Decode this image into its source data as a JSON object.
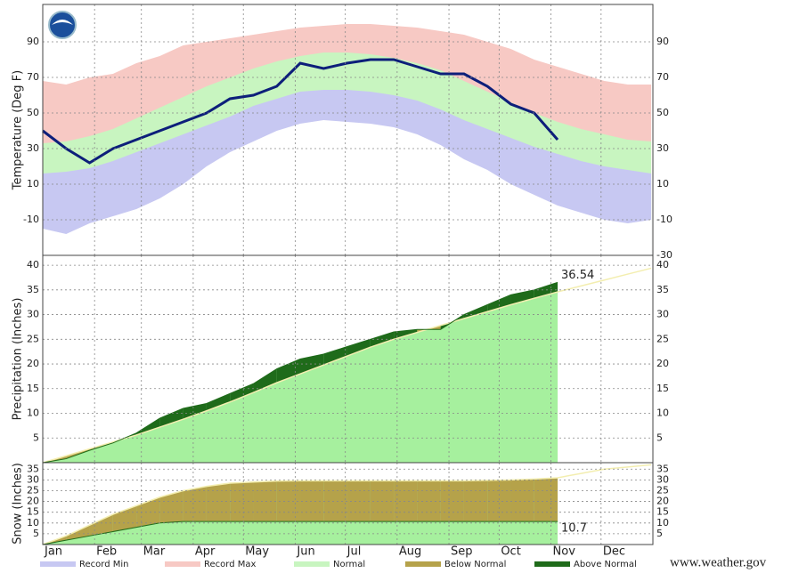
{
  "chart_data": [
    {
      "type": "band-line",
      "y_label": "Temperature (Deg F)",
      "x": [
        1,
        15,
        29,
        43,
        57,
        71,
        85,
        99,
        113,
        127,
        141,
        155,
        169,
        183,
        197,
        211,
        225,
        239,
        253,
        267,
        281,
        295,
        309,
        323,
        337,
        351,
        365
      ],
      "xlim": [
        1,
        366
      ],
      "xticks": [
        {
          "value": 1,
          "label": "Jan"
        },
        {
          "value": 32,
          "label": "Feb"
        },
        {
          "value": 60,
          "label": "Mar"
        },
        {
          "value": 91,
          "label": "Apr"
        },
        {
          "value": 121,
          "label": "May"
        },
        {
          "value": 152,
          "label": "Jun"
        },
        {
          "value": 182,
          "label": "Jul"
        },
        {
          "value": 213,
          "label": "Aug"
        },
        {
          "value": 244,
          "label": "Sep"
        },
        {
          "value": 274,
          "label": "Oct"
        },
        {
          "value": 305,
          "label": "Nov"
        },
        {
          "value": 335,
          "label": "Dec"
        }
      ],
      "ylim": [
        -30,
        111
      ],
      "yticks": [
        -30,
        -10,
        10,
        30,
        50,
        70,
        90
      ],
      "series": [
        {
          "color": "#f7c9c4",
          "values": [
            68,
            66,
            70,
            72,
            78,
            82,
            88,
            90,
            92,
            94,
            96,
            98,
            99,
            100,
            100,
            99,
            98,
            96,
            94,
            90,
            86,
            80,
            76,
            72,
            68,
            66,
            66
          ]
        },
        {
          "color": "#c8f5c0",
          "values": [
            33,
            34,
            37,
            41,
            47,
            53,
            59,
            65,
            70,
            75,
            79,
            82,
            84,
            84,
            83,
            81,
            78,
            74,
            68,
            62,
            56,
            50,
            45,
            41,
            38,
            35,
            34
          ],
          "lows": [
            16,
            17,
            19,
            23,
            28,
            33,
            38,
            43,
            48,
            54,
            58,
            62,
            63,
            63,
            62,
            60,
            57,
            52,
            46,
            41,
            36,
            31,
            27,
            23,
            20,
            18,
            16
          ]
        },
        {
          "color": "#c7c8f2",
          "values": [
            -15,
            -18,
            -12,
            -8,
            -4,
            2,
            10,
            20,
            28,
            34,
            40,
            44,
            46,
            45,
            44,
            42,
            38,
            32,
            24,
            18,
            10,
            4,
            -2,
            -6,
            -10,
            -12,
            -10
          ]
        },
        {
          "color": "#0d1f7a",
          "values": [
            40,
            30,
            22,
            30,
            35,
            40,
            45,
            50,
            58,
            60,
            65,
            78,
            75,
            78,
            80,
            80,
            76,
            72,
            72,
            65,
            55,
            50,
            35,
            null,
            null,
            null,
            null
          ]
        }
      ]
    },
    {
      "type": "cumulative",
      "y_label": "Precipitation (Inches)",
      "ylim": [
        0,
        42
      ],
      "yticks": [
        5,
        10,
        15,
        20,
        25,
        30,
        35,
        40
      ],
      "normal": {
        "color": "#a6f09e",
        "line_color": "#f3eeb0",
        "values": [
          0,
          1.4,
          2.8,
          4.2,
          5.6,
          7.2,
          8.8,
          10.5,
          12.3,
          14.2,
          16.2,
          18,
          19.8,
          21.6,
          23.4,
          25,
          26.4,
          27.8,
          29.2,
          30.6,
          32,
          33.3,
          34.6,
          35.8,
          37,
          38.2,
          39.4
        ]
      },
      "observed": {
        "above_color": "#1f6b1a",
        "below_color": "#b5a24a",
        "values": [
          0,
          0.8,
          2.5,
          4,
          6,
          9,
          11,
          12,
          14,
          16,
          19,
          21,
          22,
          23.5,
          25,
          26.5,
          27,
          27,
          30,
          32,
          34,
          35,
          36.54,
          null,
          null,
          null,
          null
        ]
      }
    },
    {
      "type": "cumulative",
      "y_label": "Snow (Inches)",
      "ylim": [
        0,
        38
      ],
      "yticks": [
        5,
        10,
        15,
        20,
        25,
        30,
        35
      ],
      "normal": {
        "color": "#a6f09e",
        "line_color": "#f3eeb0",
        "values": [
          0,
          4,
          9,
          14,
          18,
          22,
          25,
          27,
          28.5,
          29,
          29.5,
          29.6,
          29.6,
          29.6,
          29.6,
          29.6,
          29.6,
          29.6,
          29.6,
          29.8,
          30,
          30.4,
          31,
          33,
          35,
          36,
          37
        ]
      },
      "observed": {
        "above_color": "#1f6b1a",
        "below_color": "#b5a24a",
        "values": [
          0,
          2,
          4,
          6,
          8,
          10,
          10.7,
          10.7,
          10.7,
          10.7,
          10.7,
          10.7,
          10.7,
          10.7,
          10.7,
          10.7,
          10.7,
          10.7,
          10.7,
          10.7,
          10.7,
          10.7,
          10.7,
          null,
          null,
          null,
          null
        ]
      }
    }
  ],
  "legend": [
    {
      "name": "Record Min",
      "color": "#c7c8f2"
    },
    {
      "name": "Record Max",
      "color": "#f7c9c4"
    },
    {
      "name": "Normal",
      "color": "#c8f5c0"
    },
    {
      "name": "Below Normal",
      "color": "#b5a24a"
    },
    {
      "name": "Above Normal",
      "color": "#1f6b1a"
    }
  ],
  "footer": "www.weather.gov"
}
